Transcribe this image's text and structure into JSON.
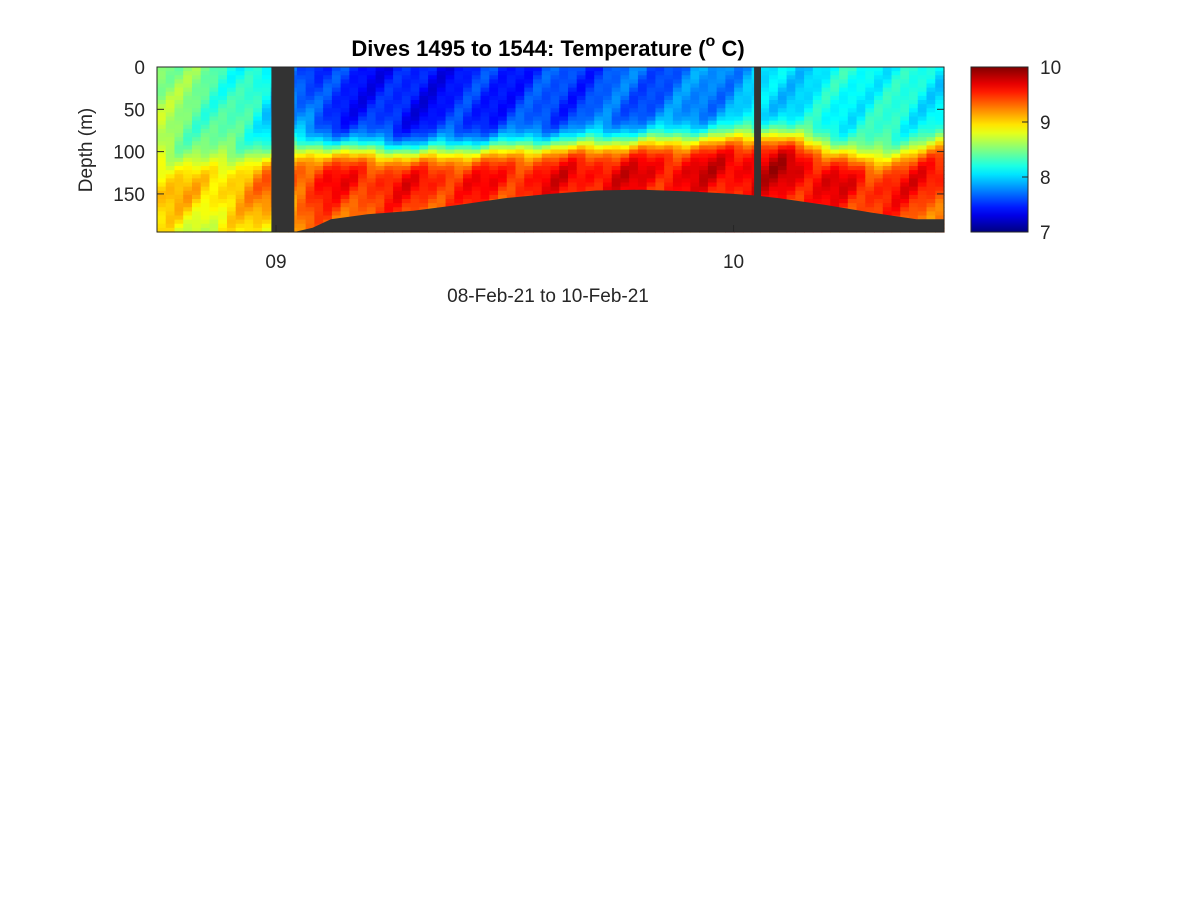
{
  "chart_data": {
    "type": "heatmap",
    "title": "Dives 1495 to 1544: Temperature (",
    "title_superscript": "o",
    "title_suffix": " C)",
    "xlabel": "08-Feb-21 to 10-Feb-21",
    "ylabel": "Depth (m)",
    "x_range_days": [
      8.74,
      10.46
    ],
    "xticks": [
      {
        "value": 9.0,
        "label": "09"
      },
      {
        "value": 10.0,
        "label": "10"
      }
    ],
    "ylim": [
      0,
      195
    ],
    "y_reversed": true,
    "yticks": [
      0,
      50,
      100,
      150
    ],
    "colorbar": {
      "colormap": "jet",
      "range": [
        7,
        10
      ],
      "ticks": [
        7,
        8,
        9,
        10
      ]
    },
    "no_data_color": "#333333",
    "gap_columns_days": [
      [
        8.99,
        9.04
      ],
      [
        10.045,
        10.06
      ]
    ],
    "seafloor_depth_profile": {
      "x": [
        9.04,
        9.08,
        9.12,
        9.2,
        9.3,
        9.4,
        9.5,
        9.6,
        9.7,
        9.8,
        9.9,
        10.0,
        10.05,
        10.1,
        10.2,
        10.3,
        10.4,
        10.46
      ],
      "depth": [
        195,
        190,
        180,
        174,
        170,
        163,
        155,
        150,
        146,
        145,
        147,
        150,
        152,
        155,
        163,
        172,
        180,
        180
      ]
    },
    "temperature_field": {
      "columns": [
        {
          "x": 8.74,
          "mixed_layer_depth_m": 110,
          "surface_temp": 8.6,
          "deep_temp": 9.1
        },
        {
          "x": 8.85,
          "mixed_layer_depth_m": 115,
          "surface_temp": 8.4,
          "deep_temp": 9.0
        },
        {
          "x": 8.95,
          "mixed_layer_depth_m": 105,
          "surface_temp": 8.2,
          "deep_temp": 9.2
        },
        {
          "x": 9.1,
          "mixed_layer_depth_m": 95,
          "surface_temp": 7.5,
          "deep_temp": 9.6
        },
        {
          "x": 9.3,
          "mixed_layer_depth_m": 100,
          "surface_temp": 7.4,
          "deep_temp": 9.6
        },
        {
          "x": 9.5,
          "mixed_layer_depth_m": 95,
          "surface_temp": 7.5,
          "deep_temp": 9.6
        },
        {
          "x": 9.7,
          "mixed_layer_depth_m": 90,
          "surface_temp": 7.6,
          "deep_temp": 9.7
        },
        {
          "x": 9.9,
          "mixed_layer_depth_m": 85,
          "surface_temp": 7.7,
          "deep_temp": 9.7
        },
        {
          "x": 10.1,
          "mixed_layer_depth_m": 80,
          "surface_temp": 8.0,
          "deep_temp": 9.8
        },
        {
          "x": 10.3,
          "mixed_layer_depth_m": 110,
          "surface_temp": 8.2,
          "deep_temp": 9.6
        },
        {
          "x": 10.46,
          "mixed_layer_depth_m": 90,
          "surface_temp": 8.1,
          "deep_temp": 9.6
        }
      ]
    }
  }
}
